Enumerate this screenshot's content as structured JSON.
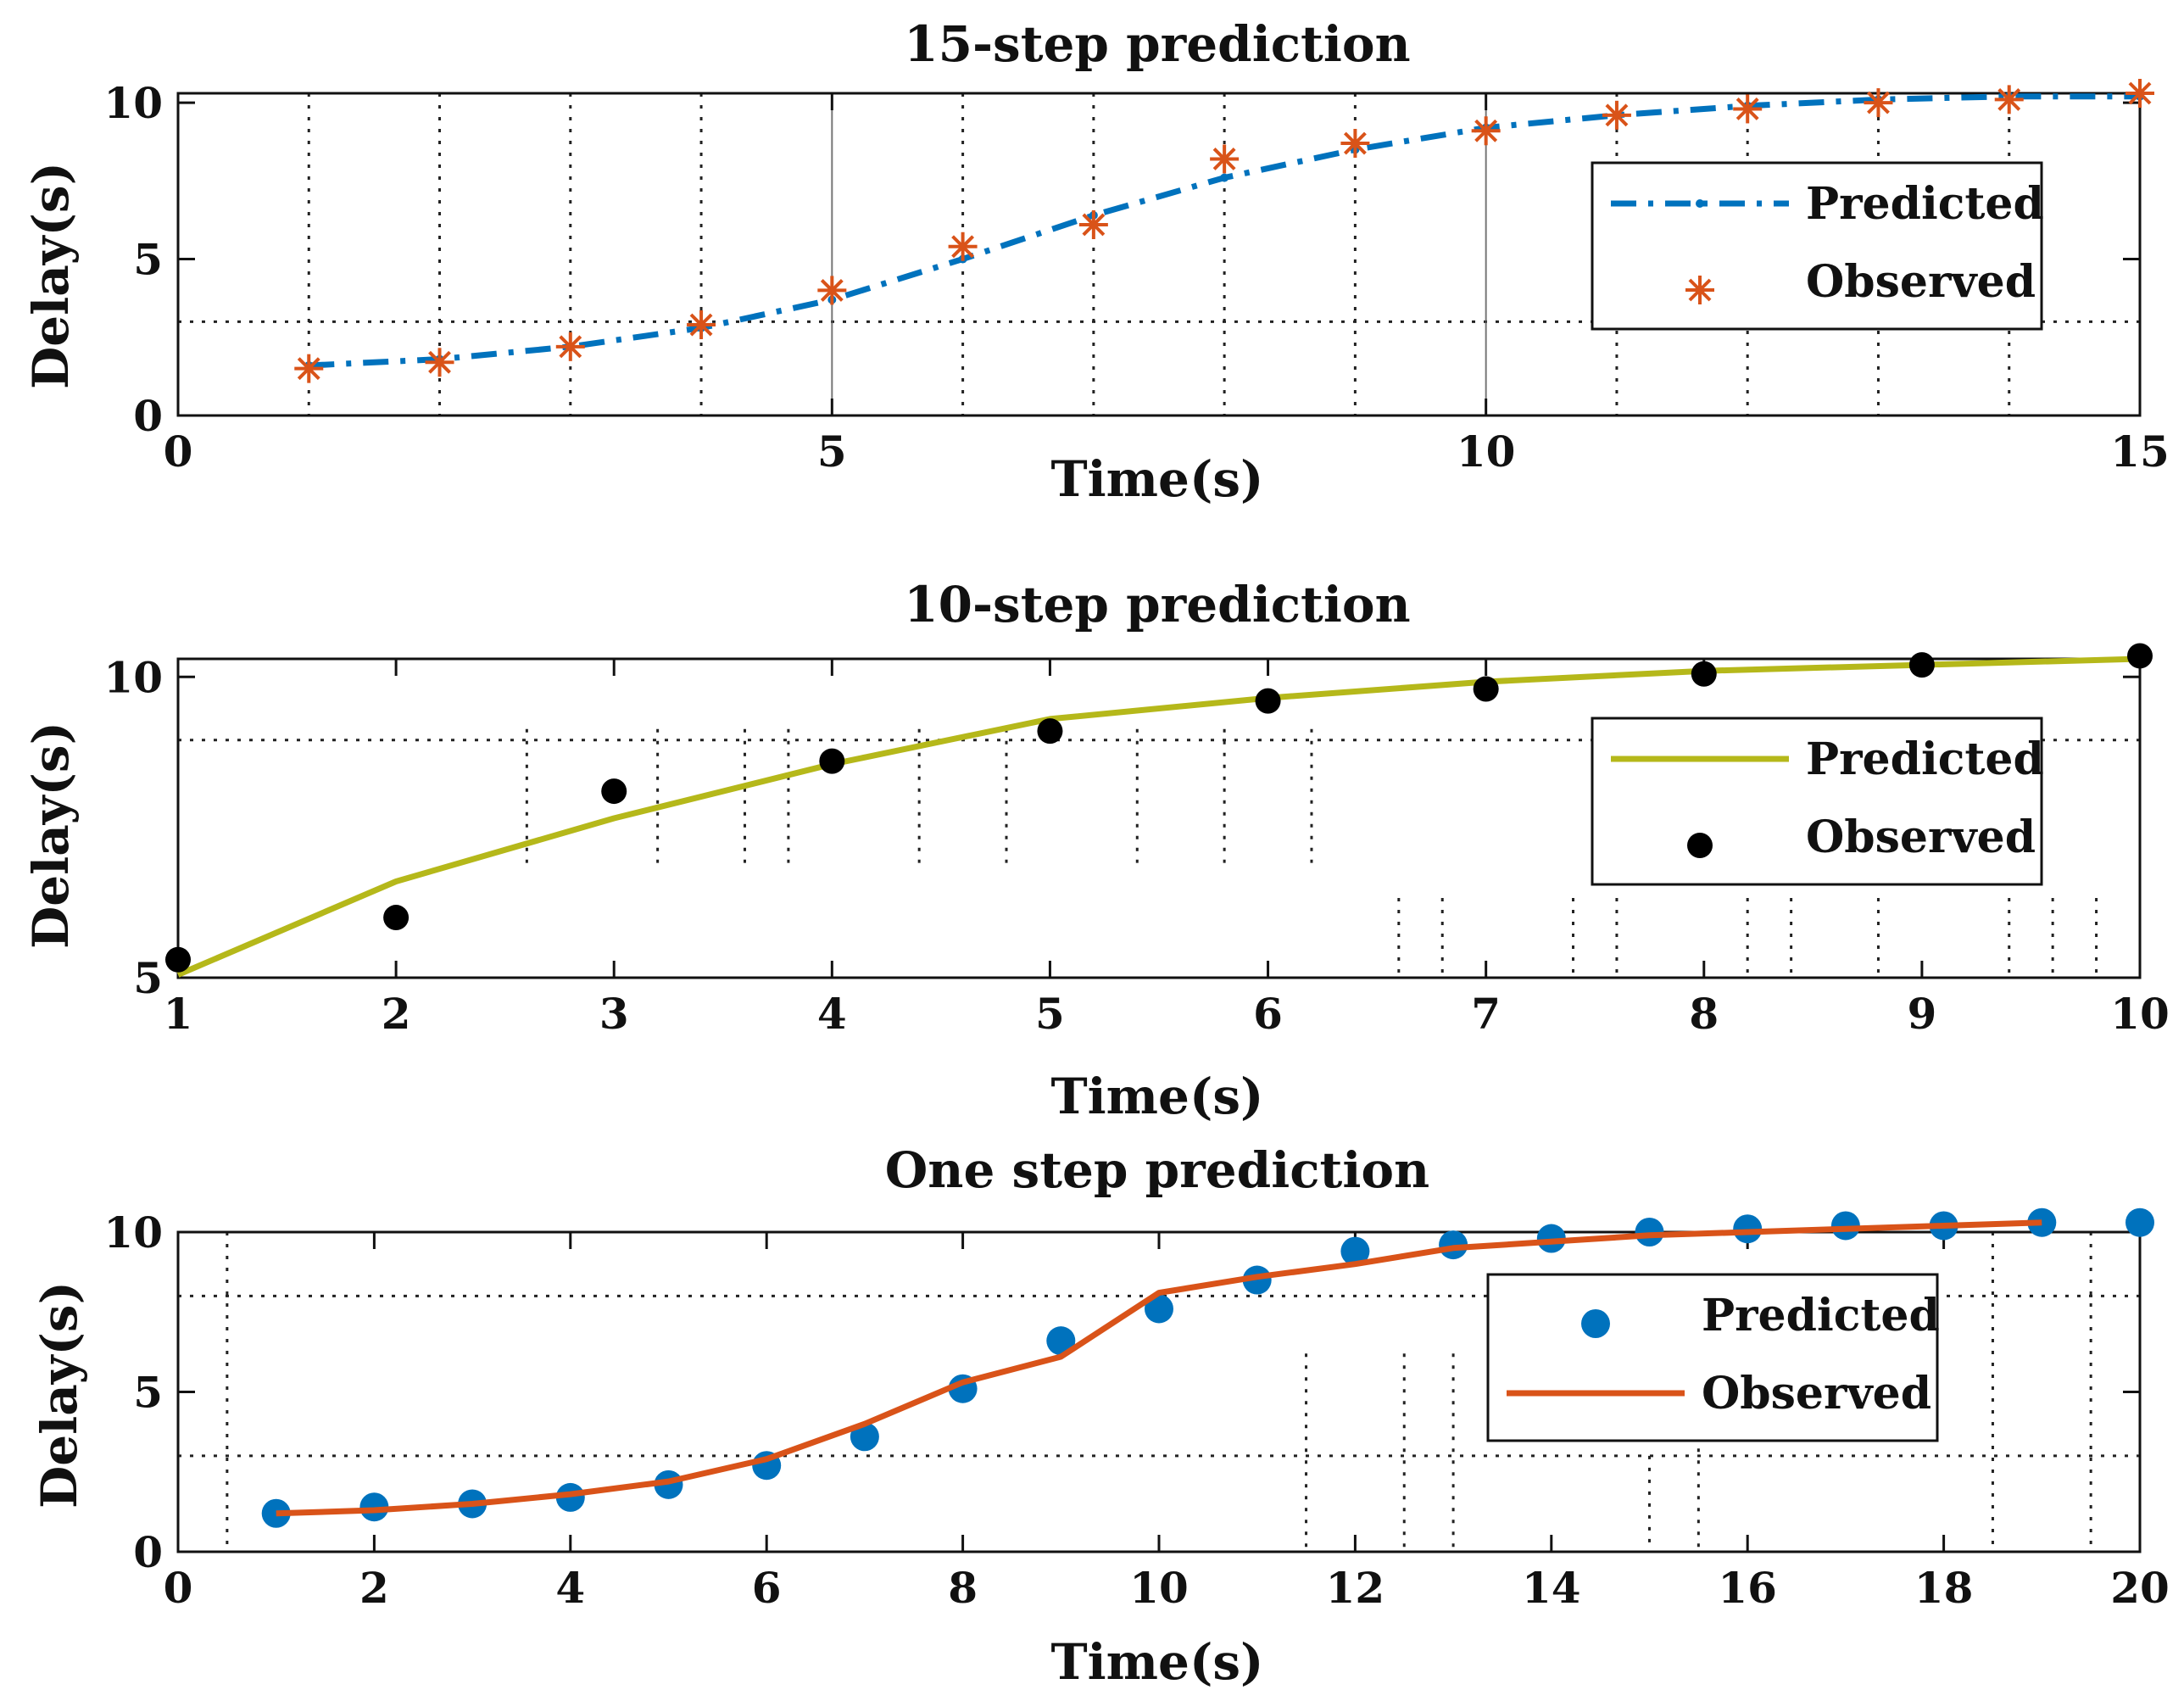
{
  "figure": {
    "colors": {
      "blue": "#0072BD",
      "orange": "#D95319",
      "olive": "#B5B81A",
      "black": "#000000"
    }
  },
  "chart_data": [
    {
      "type": "line",
      "title": "15-step prediction",
      "xlabel": "Time(s)",
      "ylabel": "Delay(s)",
      "xlim": [
        0,
        15
      ],
      "ylim": [
        0,
        10.3
      ],
      "xticks": [
        0,
        5,
        10,
        15
      ],
      "xtick_labels": [
        "0",
        "5",
        "10",
        "15"
      ],
      "yticks": [
        0,
        5,
        10
      ],
      "ytick_labels": [
        "0",
        "5",
        "10"
      ],
      "grid": "dotted lines at y=3 and at each integer x",
      "legend": {
        "placement": "right",
        "entries": [
          "Predicted",
          "Observed"
        ]
      },
      "series": [
        {
          "name": "Predicted",
          "style": "dash-dot line with point markers",
          "color": "#0072BD",
          "x": [
            1,
            2,
            3,
            4,
            5,
            6,
            7,
            8,
            9,
            10,
            11,
            12,
            13,
            14,
            15
          ],
          "y": [
            1.6,
            1.8,
            2.2,
            2.8,
            3.7,
            5.0,
            6.4,
            7.6,
            8.5,
            9.2,
            9.6,
            9.9,
            10.1,
            10.2,
            10.2
          ]
        },
        {
          "name": "Observed",
          "style": "asterisk markers",
          "color": "#D95319",
          "x": [
            1,
            2,
            3,
            4,
            5,
            6,
            7,
            8,
            9,
            10,
            11,
            12,
            13,
            14,
            15
          ],
          "y": [
            1.5,
            1.7,
            2.2,
            2.9,
            4.0,
            5.4,
            6.1,
            8.2,
            8.7,
            9.1,
            9.6,
            9.8,
            10.0,
            10.1,
            10.3
          ]
        }
      ]
    },
    {
      "type": "line",
      "title": "10-step prediction",
      "xlabel": "Time(s)",
      "ylabel": "Delay(s)",
      "xlim": [
        1,
        10
      ],
      "ylim": [
        5,
        10.3
      ],
      "xticks": [
        1,
        2,
        3,
        4,
        5,
        6,
        7,
        8,
        9,
        10
      ],
      "xtick_labels": [
        "1",
        "2",
        "3",
        "4",
        "5",
        "6",
        "7",
        "8",
        "9",
        "10"
      ],
      "yticks": [
        5,
        10
      ],
      "ytick_labels": [
        "5",
        "10"
      ],
      "grid": "dotted horizontal line near y=8.9 and scattered dotted vertical lines",
      "legend": {
        "placement": "right",
        "entries": [
          "Predicted",
          "Observed"
        ]
      },
      "series": [
        {
          "name": "Predicted",
          "style": "solid line",
          "color": "#B5B81A",
          "x": [
            1,
            2,
            3,
            4,
            5,
            6,
            7,
            8,
            9,
            10
          ],
          "y": [
            5.05,
            6.6,
            7.65,
            8.55,
            9.3,
            9.65,
            9.92,
            10.1,
            10.2,
            10.3
          ]
        },
        {
          "name": "Observed",
          "style": "filled circle markers",
          "color": "#000000",
          "x": [
            1,
            2,
            3,
            4,
            5,
            6,
            7,
            8,
            9,
            10
          ],
          "y": [
            5.3,
            6.0,
            8.1,
            8.6,
            9.1,
            9.6,
            9.8,
            10.05,
            10.2,
            10.35
          ]
        }
      ]
    },
    {
      "type": "line",
      "title": "One step prediction",
      "xlabel": "Time(s)",
      "ylabel": "Delay(s)",
      "xlim": [
        0,
        20
      ],
      "ylim": [
        0,
        10
      ],
      "xticks": [
        0,
        2,
        4,
        6,
        8,
        10,
        12,
        14,
        16,
        18,
        20
      ],
      "xtick_labels": [
        "0",
        "2",
        "4",
        "6",
        "8",
        "10",
        "12",
        "14",
        "16",
        "18",
        "20"
      ],
      "yticks": [
        0,
        5,
        10
      ],
      "ytick_labels": [
        "0",
        "5",
        "10"
      ],
      "grid": "dotted horizontal lines at y=3 and y=8 and dotted vertical lines",
      "legend": {
        "placement": "right",
        "entries": [
          "Predicted",
          "Observed"
        ]
      },
      "series": [
        {
          "name": "Predicted",
          "style": "filled circle markers",
          "color": "#0072BD",
          "x": [
            1,
            2,
            3,
            4,
            5,
            6,
            7,
            8,
            9,
            10,
            11,
            12,
            13,
            14,
            15,
            16,
            17,
            18,
            19,
            20
          ],
          "y": [
            1.2,
            1.4,
            1.5,
            1.7,
            2.1,
            2.7,
            3.6,
            5.1,
            6.6,
            7.6,
            8.5,
            9.4,
            9.6,
            9.8,
            10.0,
            10.1,
            10.2,
            10.2,
            10.3,
            10.3
          ]
        },
        {
          "name": "Observed",
          "style": "solid line",
          "color": "#D95319",
          "x": [
            1,
            2,
            3,
            4,
            5,
            6,
            7,
            8,
            9,
            10,
            11,
            12,
            13,
            14,
            15,
            16,
            17,
            18,
            19
          ],
          "y": [
            1.2,
            1.3,
            1.5,
            1.8,
            2.2,
            2.9,
            4.0,
            5.3,
            6.1,
            8.1,
            8.6,
            9.0,
            9.5,
            9.7,
            9.9,
            10.0,
            10.1,
            10.2,
            10.3
          ]
        }
      ]
    }
  ]
}
